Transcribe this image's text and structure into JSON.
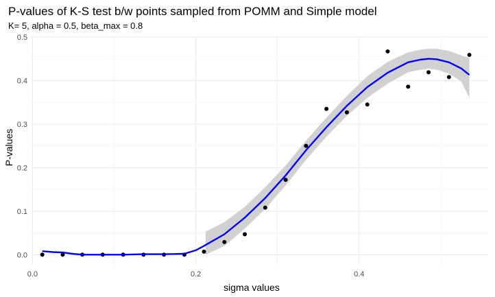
{
  "chart_data": {
    "type": "scatter",
    "title": "P-values of K-S test b/w points sampled from POMM and Simple model",
    "subtitle": "K= 5, alpha = 0.5, beta_max = 0.8",
    "xlabel": "sigma values",
    "ylabel": "P-values",
    "xlim": [
      -0.002,
      0.558
    ],
    "ylim": [
      -0.0232,
      0.5
    ],
    "x_ticks": [
      0.0,
      0.2,
      0.4
    ],
    "x_tick_labels": [
      "0.0",
      "0.2",
      "0.4"
    ],
    "y_ticks": [
      0.0,
      0.1,
      0.2,
      0.3,
      0.4,
      0.5
    ],
    "y_tick_labels": [
      "0.0",
      "0.1",
      "0.2",
      "0.3",
      "0.4",
      "0.5"
    ],
    "grid": true,
    "points": {
      "x": [
        0.012,
        0.037,
        0.061,
        0.086,
        0.111,
        0.136,
        0.161,
        0.186,
        0.21,
        0.235,
        0.26,
        0.285,
        0.31,
        0.335,
        0.36,
        0.385,
        0.41,
        0.435,
        0.46,
        0.485,
        0.51,
        0.535
      ],
      "y": [
        0.0,
        0.0,
        0.0,
        0.0,
        0.0,
        0.0,
        0.0,
        0.0,
        0.007,
        0.029,
        0.047,
        0.108,
        0.172,
        0.25,
        0.335,
        0.327,
        0.345,
        0.467,
        0.386,
        0.419,
        0.408,
        0.459
      ],
      "color": "#000000"
    },
    "smooth": {
      "color": "#0000ff",
      "x": [
        0.012,
        0.025,
        0.037,
        0.049,
        0.061,
        0.086,
        0.111,
        0.136,
        0.161,
        0.186,
        0.2,
        0.21,
        0.235,
        0.26,
        0.285,
        0.31,
        0.335,
        0.36,
        0.385,
        0.41,
        0.435,
        0.46,
        0.475,
        0.485,
        0.495,
        0.51,
        0.525,
        0.535
      ],
      "y": [
        0.008,
        0.006,
        0.005,
        0.002,
        0.0,
        0.0,
        0.0,
        0.001,
        0.001,
        0.002,
        0.01,
        0.02,
        0.047,
        0.085,
        0.13,
        0.182,
        0.24,
        0.293,
        0.342,
        0.385,
        0.418,
        0.442,
        0.448,
        0.45,
        0.449,
        0.442,
        0.428,
        0.413
      ]
    },
    "confidence_band": {
      "color": "#cccccc",
      "x": [
        0.212,
        0.235,
        0.26,
        0.285,
        0.31,
        0.335,
        0.36,
        0.385,
        0.41,
        0.435,
        0.46,
        0.475,
        0.485,
        0.495,
        0.51,
        0.525,
        0.535
      ],
      "upper": [
        0.053,
        0.075,
        0.11,
        0.155,
        0.205,
        0.262,
        0.315,
        0.365,
        0.41,
        0.443,
        0.465,
        0.471,
        0.473,
        0.473,
        0.468,
        0.458,
        0.452
      ],
      "lower": [
        0.0,
        0.02,
        0.06,
        0.105,
        0.159,
        0.218,
        0.271,
        0.319,
        0.36,
        0.393,
        0.419,
        0.425,
        0.427,
        0.425,
        0.416,
        0.398,
        0.36
      ]
    }
  }
}
